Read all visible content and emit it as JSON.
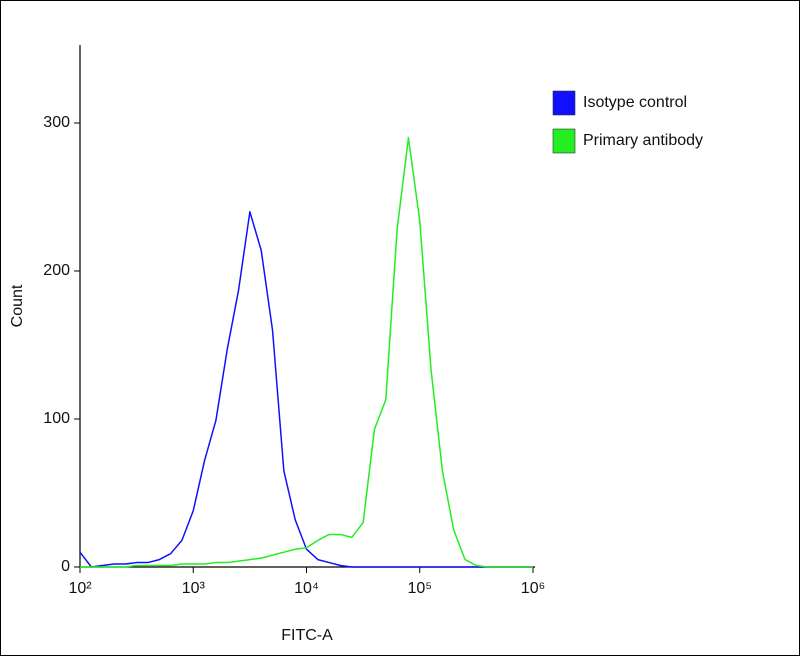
{
  "chart_data": {
    "type": "line",
    "xlabel": "FITC-A",
    "ylabel": "Count",
    "xscale": "log",
    "xlim": [
      100,
      1000000
    ],
    "ylim": [
      0,
      350
    ],
    "xticks": [
      {
        "value": 100,
        "label": "10²"
      },
      {
        "value": 1000,
        "label": "10³"
      },
      {
        "value": 10000,
        "label": "10⁴"
      },
      {
        "value": 100000,
        "label": "10⁵"
      },
      {
        "value": 1000000,
        "label": "10⁶"
      }
    ],
    "yticks": [
      0,
      100,
      200,
      300
    ],
    "legend": "upper right",
    "x": [
      100,
      126,
      158,
      200,
      251,
      316,
      398,
      501,
      631,
      794,
      1000,
      1259,
      1585,
      1995,
      2512,
      3162,
      3981,
      5012,
      6310,
      7943,
      10000,
      12589,
      15849,
      19953,
      25119,
      31623,
      39811,
      50119,
      63096,
      79433,
      100000,
      125893,
      158489,
      199526,
      251189,
      316228,
      398107,
      501187,
      630957,
      794328,
      1000000
    ],
    "series": [
      {
        "name": "Isotype control",
        "color": "#1010ff",
        "values": [
          10,
          0,
          1,
          2,
          2,
          3,
          3,
          5,
          9,
          18,
          38,
          72,
          99,
          147,
          187,
          240,
          214,
          160,
          65,
          32,
          12,
          5,
          3,
          1,
          0,
          0,
          0,
          0,
          0,
          0,
          0,
          0,
          0,
          0,
          0,
          0,
          0,
          0,
          0,
          0,
          0
        ]
      },
      {
        "name": "Primary antibody",
        "color": "#22ee22",
        "values": [
          0,
          0,
          0,
          0,
          0,
          1,
          1,
          1,
          1,
          2,
          2,
          2,
          3,
          3,
          4,
          5,
          6,
          8,
          10,
          12,
          13,
          18,
          22,
          22,
          20,
          30,
          93,
          113,
          228,
          290,
          234,
          133,
          65,
          25,
          5,
          1,
          0,
          0,
          0,
          0,
          0
        ]
      }
    ]
  }
}
